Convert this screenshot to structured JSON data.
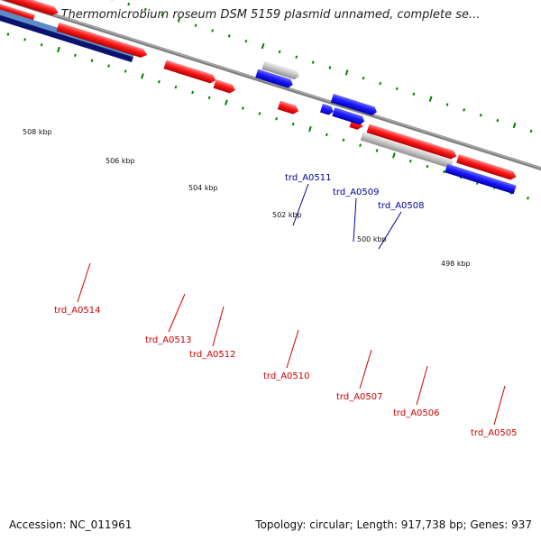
{
  "title": "Thermomicrobium roseum DSM 5159 plasmid unnamed, complete se...",
  "footer": {
    "accession": "Accession: NC_011961",
    "summary": "Topology: circular; Length: 917,738 bp; Genes: 937"
  },
  "colors": {
    "forward": "#ff0000",
    "reverse": "#0000ff",
    "pseudo": "#c0c0c0",
    "backbone": "#808080",
    "ticks": "#008000",
    "label_forward": "#cc0000",
    "label_reverse": "#000099"
  },
  "kbp_labels": [
    "508 kbp",
    "506 kbp",
    "504 kbp",
    "502 kbp",
    "500 kbp",
    "498 kbp"
  ],
  "genes": [
    {
      "name": "trd_A0514",
      "strand": "forward"
    },
    {
      "name": "trd_A0513",
      "strand": "forward"
    },
    {
      "name": "trd_A0512",
      "strand": "forward"
    },
    {
      "name": "trd_A0511",
      "strand": "reverse"
    },
    {
      "name": "trd_A0510",
      "strand": "forward"
    },
    {
      "name": "trd_A0509",
      "strand": "reverse"
    },
    {
      "name": "trd_A0508",
      "strand": "reverse"
    },
    {
      "name": "trd_A0507",
      "strand": "forward"
    },
    {
      "name": "trd_A0506",
      "strand": "forward"
    },
    {
      "name": "trd_A0505",
      "strand": "forward"
    }
  ]
}
